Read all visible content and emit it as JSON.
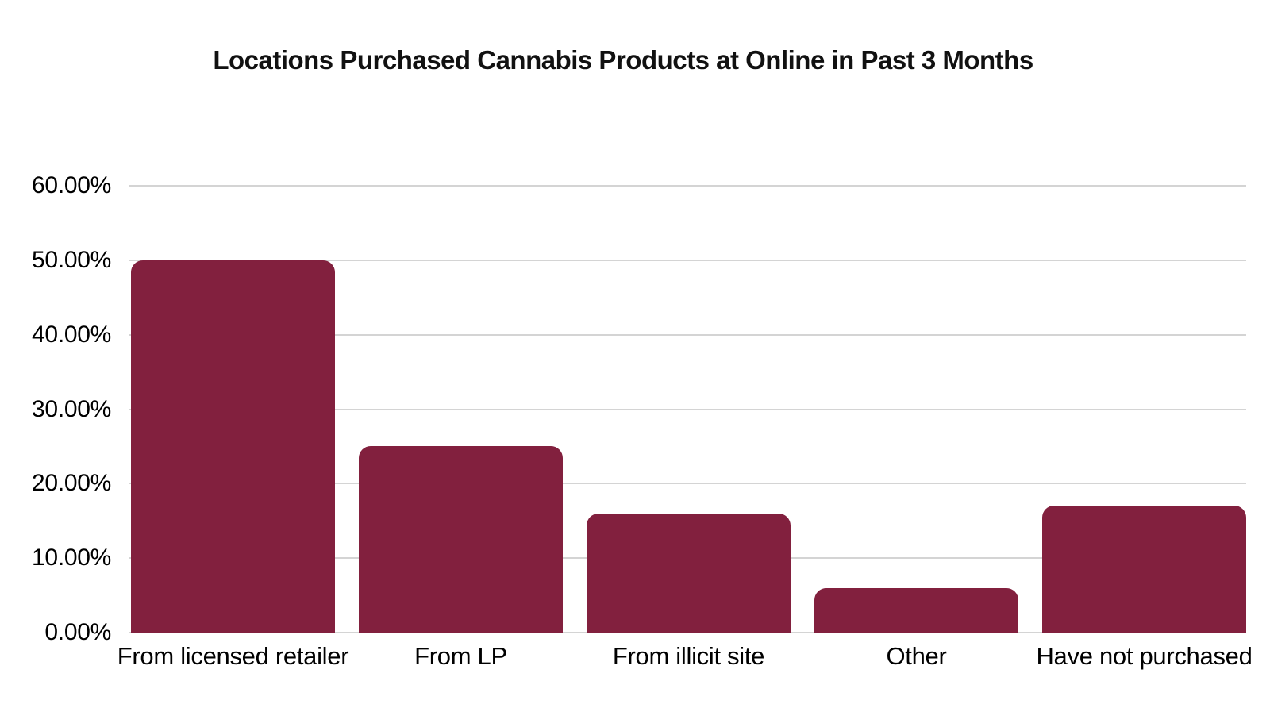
{
  "chart_data": {
    "type": "bar",
    "title": "Locations Purchased Cannabis Products at Online in Past 3 Months",
    "categories": [
      "From licensed retailer",
      "From LP",
      "From illicit site",
      "Other",
      "Have not purchased"
    ],
    "values": [
      50,
      25,
      16,
      6,
      17
    ],
    "unit": "percent",
    "xlabel": "",
    "ylabel": "",
    "ylim": [
      0,
      60
    ],
    "ytick_step": 10,
    "ytick_labels": [
      "0.00%",
      "10.00%",
      "20.00%",
      "30.00%",
      "40.00%",
      "50.00%",
      "60.00%"
    ],
    "grid": true,
    "legend": "none",
    "colors": {
      "bar": "#82203E",
      "gridline": "#D4D4D4",
      "title_text": "#111111",
      "axis_text": "#000000",
      "background": "#FFFFFF"
    }
  }
}
